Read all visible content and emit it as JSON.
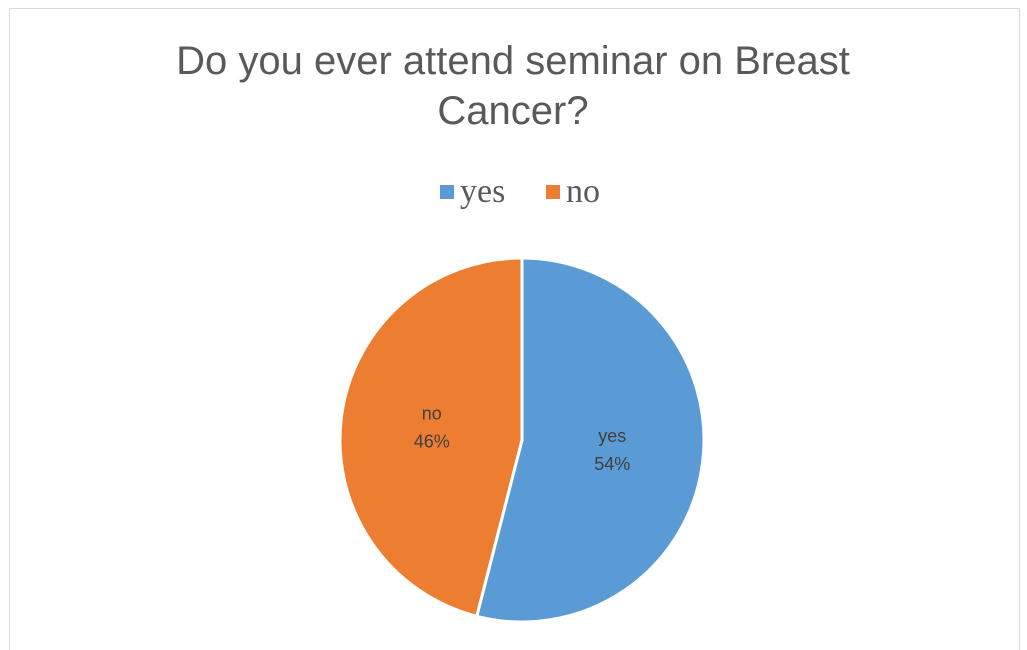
{
  "chart_data": {
    "type": "pie",
    "title": "Do you ever attend seminar on Breast Cancer?",
    "categories": [
      "yes",
      "no"
    ],
    "values": [
      54,
      46
    ],
    "value_labels": [
      "54%",
      "46%"
    ],
    "colors": [
      "#5b9bd5",
      "#ed7d31"
    ],
    "legend": "top"
  }
}
